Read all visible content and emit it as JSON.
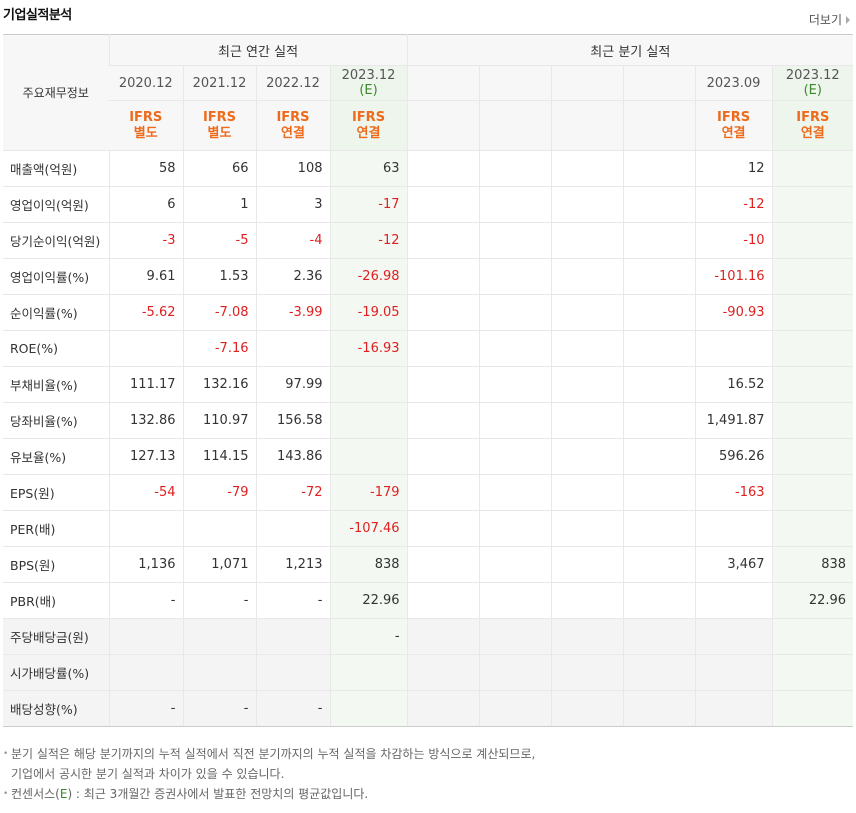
{
  "title": "기업실적분석",
  "more_label": "더보기",
  "header": {
    "row_label": "주요재무정보",
    "annual_label": "최근 연간 실적",
    "quarter_label": "최근 분기 실적",
    "annual_periods": [
      {
        "date": "2020.12",
        "est": "",
        "ifrs": "IFRS",
        "basis": "별도"
      },
      {
        "date": "2021.12",
        "est": "",
        "ifrs": "IFRS",
        "basis": "별도"
      },
      {
        "date": "2022.12",
        "est": "",
        "ifrs": "IFRS",
        "basis": "연결"
      },
      {
        "date": "2023.12",
        "est": "(E)",
        "ifrs": "IFRS",
        "basis": "연결"
      }
    ],
    "quarter_periods": [
      {
        "date": "",
        "est": "",
        "ifrs": "",
        "basis": ""
      },
      {
        "date": "",
        "est": "",
        "ifrs": "",
        "basis": ""
      },
      {
        "date": "",
        "est": "",
        "ifrs": "",
        "basis": ""
      },
      {
        "date": "",
        "est": "",
        "ifrs": "",
        "basis": ""
      },
      {
        "date": "2023.09",
        "est": "",
        "ifrs": "IFRS",
        "basis": "연결"
      },
      {
        "date": "2023.12",
        "est": "(E)",
        "ifrs": "IFRS",
        "basis": "연결"
      }
    ]
  },
  "rows": [
    {
      "name": "매출액(억원)",
      "sec": false,
      "gray": false,
      "a": [
        "58",
        "66",
        "108",
        "63"
      ],
      "q": [
        "",
        "",
        "",
        "",
        "12",
        ""
      ]
    },
    {
      "name": "영업이익(억원)",
      "sec": false,
      "gray": false,
      "a": [
        "6",
        "1",
        "3",
        "-17"
      ],
      "q": [
        "",
        "",
        "",
        "",
        "-12",
        ""
      ]
    },
    {
      "name": "당기순이익(억원)",
      "sec": false,
      "gray": false,
      "a": [
        "-3",
        "-5",
        "-4",
        "-12"
      ],
      "q": [
        "",
        "",
        "",
        "",
        "-10",
        ""
      ]
    },
    {
      "name": "영업이익률(%)",
      "sec": true,
      "gray": false,
      "a": [
        "9.61",
        "1.53",
        "2.36",
        "-26.98"
      ],
      "q": [
        "",
        "",
        "",
        "",
        "-101.16",
        ""
      ]
    },
    {
      "name": "순이익률(%)",
      "sec": false,
      "gray": false,
      "a": [
        "-5.62",
        "-7.08",
        "-3.99",
        "-19.05"
      ],
      "q": [
        "",
        "",
        "",
        "",
        "-90.93",
        ""
      ]
    },
    {
      "name": "ROE(%)",
      "sec": false,
      "gray": false,
      "a": [
        "",
        "-7.16",
        "",
        "-16.93"
      ],
      "q": [
        "",
        "",
        "",
        "",
        "",
        ""
      ]
    },
    {
      "name": "부채비율(%)",
      "sec": true,
      "gray": false,
      "a": [
        "111.17",
        "132.16",
        "97.99",
        ""
      ],
      "q": [
        "",
        "",
        "",
        "",
        "16.52",
        ""
      ]
    },
    {
      "name": "당좌비율(%)",
      "sec": false,
      "gray": false,
      "a": [
        "132.86",
        "110.97",
        "156.58",
        ""
      ],
      "q": [
        "",
        "",
        "",
        "",
        "1,491.87",
        ""
      ]
    },
    {
      "name": "유보율(%)",
      "sec": false,
      "gray": false,
      "a": [
        "127.13",
        "114.15",
        "143.86",
        ""
      ],
      "q": [
        "",
        "",
        "",
        "",
        "596.26",
        ""
      ]
    },
    {
      "name": "EPS(원)",
      "sec": true,
      "gray": false,
      "a": [
        "-54",
        "-79",
        "-72",
        "-179"
      ],
      "q": [
        "",
        "",
        "",
        "",
        "-163",
        ""
      ]
    },
    {
      "name": "PER(배)",
      "sec": false,
      "gray": false,
      "a": [
        "",
        "",
        "",
        "-107.46"
      ],
      "q": [
        "",
        "",
        "",
        "",
        "",
        ""
      ]
    },
    {
      "name": "BPS(원)",
      "sec": false,
      "gray": false,
      "a": [
        "1,136",
        "1,071",
        "1,213",
        "838"
      ],
      "q": [
        "",
        "",
        "",
        "",
        "3,467",
        "838"
      ]
    },
    {
      "name": "PBR(배)",
      "sec": false,
      "gray": false,
      "a": [
        "-",
        "-",
        "-",
        "22.96"
      ],
      "q": [
        "",
        "",
        "",
        "",
        "",
        "22.96"
      ]
    },
    {
      "name": "주당배당금(원)",
      "sec": true,
      "gray": true,
      "a": [
        "",
        "",
        "",
        "-"
      ],
      "q": [
        "",
        "",
        "",
        "",
        "",
        ""
      ]
    },
    {
      "name": "시가배당률(%)",
      "sec": false,
      "gray": true,
      "a": [
        "",
        "",
        "",
        ""
      ],
      "q": [
        "",
        "",
        "",
        "",
        "",
        ""
      ]
    },
    {
      "name": "배당성향(%)",
      "sec": false,
      "gray": true,
      "a": [
        "-",
        "-",
        "-",
        ""
      ],
      "q": [
        "",
        "",
        "",
        "",
        "",
        ""
      ]
    }
  ],
  "notes": {
    "line1": "분기 실적은 해당 분기까지의 누적 실적에서 직전 분기까지의 누적 실적을 차감하는 방식으로 계산되므로,",
    "line2": "기업에서 공시한 분기 실적과 차이가 있을 수 있습니다.",
    "line3_prefix": "컨센서스(",
    "line3_e": "E",
    "line3_suffix": ") : 최근 3개월간 증권사에서 발표한 전망치의 평균값입니다."
  },
  "colors": {
    "negative": "#e02020",
    "ifrs": "#ee6b1c",
    "estimate": "#3a8a2a"
  }
}
